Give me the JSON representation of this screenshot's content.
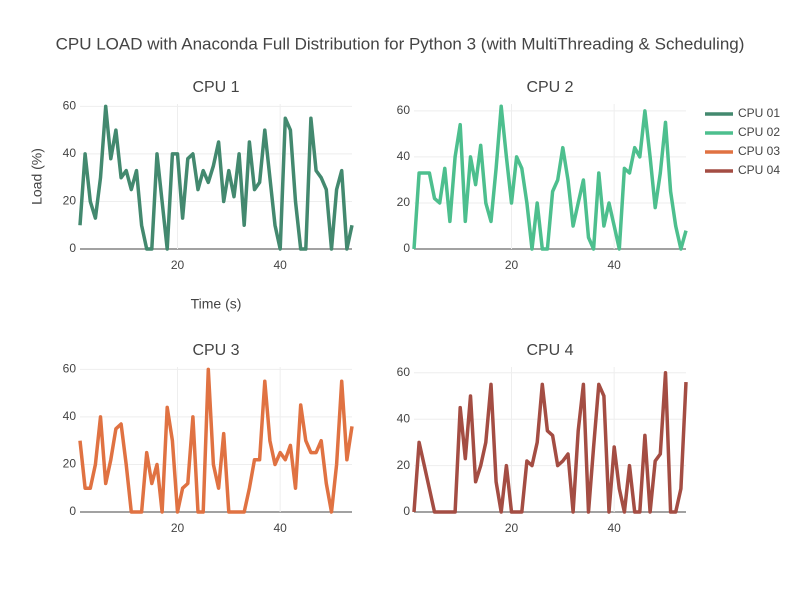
{
  "title": "CPU LOAD with Anaconda Full Distribution for Python 3 (with MultiThreading & Scheduling)",
  "chart_data": [
    {
      "type": "line",
      "title": "CPU 1",
      "xlabel": "Time (s)",
      "ylabel": "Load (%)",
      "x": [
        1,
        2,
        3,
        4,
        5,
        6,
        7,
        8,
        9,
        10,
        11,
        12,
        13,
        14,
        15,
        16,
        17,
        18,
        19,
        20,
        21,
        22,
        23,
        24,
        25,
        26,
        27,
        28,
        29,
        30,
        31,
        32,
        33,
        34,
        35,
        36,
        37,
        38,
        39,
        40,
        41,
        42,
        43,
        44,
        45,
        46,
        47,
        48,
        49,
        50,
        51,
        52,
        53,
        54
      ],
      "series": [
        {
          "name": "CPU 01",
          "color": "#43896f",
          "values": [
            10,
            40,
            20,
            13,
            30,
            60,
            38,
            50,
            30,
            33,
            25,
            33,
            10,
            0,
            0,
            40,
            20,
            0,
            40,
            40,
            13,
            38,
            40,
            25,
            33,
            28,
            35,
            45,
            20,
            33,
            22,
            40,
            10,
            45,
            25,
            28,
            50,
            30,
            10,
            0,
            55,
            50,
            20,
            0,
            0,
            55,
            33,
            30,
            25,
            0,
            25,
            33,
            0,
            10
          ]
        }
      ],
      "xlim": [
        1,
        54
      ],
      "ylim": [
        0,
        61
      ],
      "xticks": [
        20,
        40
      ],
      "yticks": [
        0,
        20,
        40,
        60
      ],
      "grid": true
    },
    {
      "type": "line",
      "title": "CPU 2",
      "x": [
        1,
        2,
        3,
        4,
        5,
        6,
        7,
        8,
        9,
        10,
        11,
        12,
        13,
        14,
        15,
        16,
        17,
        18,
        19,
        20,
        21,
        22,
        23,
        24,
        25,
        26,
        27,
        28,
        29,
        30,
        31,
        32,
        33,
        34,
        35,
        36,
        37,
        38,
        39,
        40,
        41,
        42,
        43,
        44,
        45,
        46,
        47,
        48,
        49,
        50,
        51,
        52,
        53,
        54
      ],
      "series": [
        {
          "name": "CPU 02",
          "color": "#4dbf8e",
          "values": [
            0,
            33,
            33,
            33,
            22,
            20,
            35,
            12,
            40,
            54,
            12,
            40,
            28,
            45,
            20,
            12,
            35,
            62,
            40,
            20,
            40,
            35,
            20,
            0,
            20,
            0,
            0,
            25,
            30,
            44,
            30,
            10,
            20,
            30,
            5,
            0,
            33,
            10,
            20,
            10,
            0,
            35,
            33,
            44,
            40,
            60,
            40,
            18,
            33,
            55,
            25,
            10,
            0,
            8
          ]
        }
      ],
      "xlim": [
        1,
        54
      ],
      "ylim": [
        0,
        63
      ],
      "xticks": [
        20,
        40
      ],
      "yticks": [
        0,
        20,
        40,
        60
      ],
      "grid": true
    },
    {
      "type": "line",
      "title": "CPU 3",
      "x": [
        1,
        2,
        3,
        4,
        5,
        6,
        7,
        8,
        9,
        10,
        11,
        12,
        13,
        14,
        15,
        16,
        17,
        18,
        19,
        20,
        21,
        22,
        23,
        24,
        25,
        26,
        27,
        28,
        29,
        30,
        31,
        32,
        33,
        34,
        35,
        36,
        37,
        38,
        39,
        40,
        41,
        42,
        43,
        44,
        45,
        46,
        47,
        48,
        49,
        50,
        51,
        52,
        53,
        54
      ],
      "series": [
        {
          "name": "CPU 03",
          "color": "#e07242",
          "values": [
            30,
            10,
            10,
            20,
            40,
            12,
            22,
            35,
            37,
            20,
            0,
            0,
            0,
            25,
            12,
            20,
            0,
            44,
            30,
            0,
            10,
            12,
            40,
            0,
            0,
            60,
            20,
            10,
            33,
            0,
            0,
            0,
            0,
            10,
            22,
            22,
            55,
            30,
            20,
            25,
            22,
            28,
            10,
            45,
            30,
            25,
            25,
            30,
            12,
            0,
            20,
            55,
            22,
            36
          ]
        }
      ],
      "xlim": [
        1,
        54
      ],
      "ylim": [
        0,
        61
      ],
      "xticks": [
        20,
        40
      ],
      "yticks": [
        0,
        20,
        40,
        60
      ],
      "grid": true
    },
    {
      "type": "line",
      "title": "CPU 4",
      "x": [
        1,
        2,
        3,
        4,
        5,
        6,
        7,
        8,
        9,
        10,
        11,
        12,
        13,
        14,
        15,
        16,
        17,
        18,
        19,
        20,
        21,
        22,
        23,
        24,
        25,
        26,
        27,
        28,
        29,
        30,
        31,
        32,
        33,
        34,
        35,
        36,
        37,
        38,
        39,
        40,
        41,
        42,
        43,
        44,
        45,
        46,
        47,
        48,
        49,
        50,
        51,
        52,
        53,
        54
      ],
      "series": [
        {
          "name": "CPU 04",
          "color": "#a44d43",
          "values": [
            0,
            30,
            20,
            10,
            0,
            0,
            0,
            0,
            0,
            45,
            23,
            50,
            13,
            20,
            30,
            55,
            13,
            0,
            20,
            0,
            0,
            0,
            22,
            20,
            30,
            55,
            35,
            33,
            20,
            22,
            25,
            0,
            35,
            55,
            0,
            28,
            55,
            50,
            0,
            28,
            10,
            0,
            20,
            0,
            0,
            33,
            0,
            22,
            25,
            60,
            0,
            0,
            10,
            56
          ]
        }
      ],
      "xlim": [
        1,
        54
      ],
      "ylim": [
        0,
        62.5
      ],
      "xticks": [
        20,
        40
      ],
      "yticks": [
        0,
        20,
        40,
        60
      ],
      "grid": true
    }
  ]
}
